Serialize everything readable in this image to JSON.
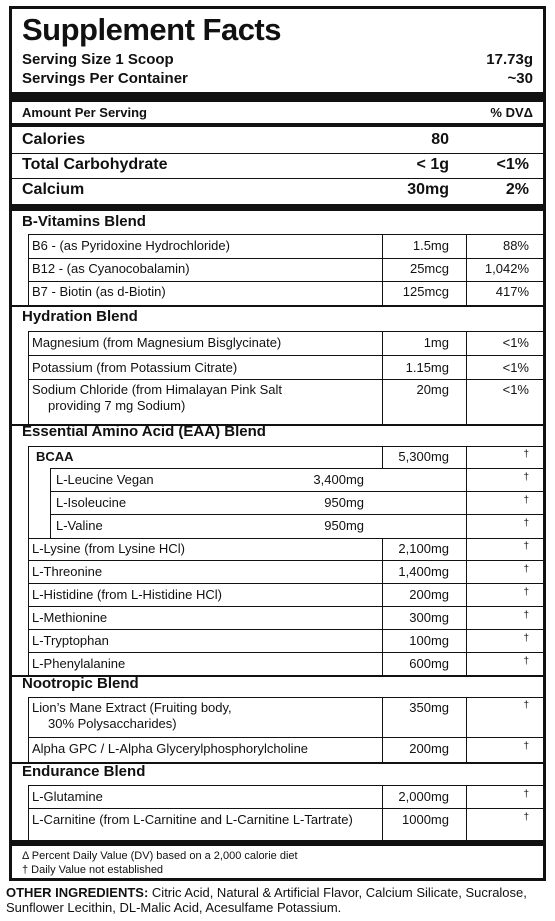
{
  "title": "Supplement Facts",
  "serving_size_label": "Serving Size 1 Scoop",
  "serving_size_value": "17.73g",
  "servings_label": "Servings Per Container",
  "servings_value": "~30",
  "amount_header": "Amount Per Serving",
  "dv_header": "% DVΔ",
  "calories": {
    "label": "Calories",
    "amount": "80"
  },
  "carbs": {
    "label": "Total Carbohydrate",
    "amount": "< 1g",
    "dv": "<1%"
  },
  "calcium": {
    "label": "Calcium",
    "amount": "30mg",
    "dv": "2%"
  },
  "bvit": {
    "title": "B-Vitamins Blend",
    "items": [
      {
        "label": "B6 - (as Pyridoxine Hydrochloride)",
        "amount": "1.5mg",
        "dv": "88%"
      },
      {
        "label": "B12 - (as Cyanocobalamin)",
        "amount": "25mcg",
        "dv": "1,042%"
      },
      {
        "label": "B7 - Biotin (as d-Biotin)",
        "amount": "125mcg",
        "dv": "417%"
      }
    ]
  },
  "hyd": {
    "title": "Hydration Blend",
    "items": [
      {
        "label": "Magnesium (from Magnesium Bisglycinate)",
        "amount": "1mg",
        "dv": "<1%"
      },
      {
        "label": "Potassium (from Potassium Citrate)",
        "amount": "1.15mg",
        "dv": "<1%"
      },
      {
        "label": "Sodium Chloride (from Himalayan Pink Salt",
        "label2": "providing 7 mg Sodium)",
        "amount": "20mg",
        "dv": "<1%"
      }
    ]
  },
  "eaa": {
    "title": "Essential Amino Acid (EAA) Blend",
    "bcaa": {
      "label": "BCAA",
      "amount": "5,300mg",
      "dv": "†"
    },
    "bcaa_items": [
      {
        "label": "L-Leucine Vegan",
        "amount": "3,400mg",
        "dv": "†"
      },
      {
        "label": "L-Isoleucine",
        "amount": "950mg",
        "dv": "†"
      },
      {
        "label": "L-Valine",
        "amount": "950mg",
        "dv": "†"
      }
    ],
    "items": [
      {
        "label": "L-Lysine (from Lysine HCl)",
        "amount": "2,100mg",
        "dv": "†"
      },
      {
        "label": "L-Threonine",
        "amount": "1,400mg",
        "dv": "†"
      },
      {
        "label": "L-Histidine (from L-Histidine HCl)",
        "amount": "200mg",
        "dv": "†"
      },
      {
        "label": "L-Methionine",
        "amount": "300mg",
        "dv": "†"
      },
      {
        "label": "L-Tryptophan",
        "amount": "100mg",
        "dv": "†"
      },
      {
        "label": "L-Phenylalanine",
        "amount": "600mg",
        "dv": "†"
      }
    ]
  },
  "noot": {
    "title": "Nootropic Blend",
    "items": [
      {
        "label": "Lion’s Mane Extract  (Fruiting body,",
        "label2": "30% Polysaccharides)",
        "amount": "350mg",
        "dv": "†"
      },
      {
        "label": "Alpha GPC / L-Alpha Glycerylphosphorylcholine",
        "amount": "200mg",
        "dv": "†"
      }
    ]
  },
  "endu": {
    "title": "Endurance Blend",
    "items": [
      {
        "label": "L-Glutamine",
        "amount": "2,000mg",
        "dv": "†"
      },
      {
        "label": "L-Carnitine (from L-Carnitine and L-Carnitine L-Tartrate)",
        "amount": "1000mg",
        "dv": "†"
      }
    ]
  },
  "footnote1": "Δ Percent Daily Value (DV) based on a 2,000 calorie diet",
  "footnote2": "† Daily Value not established",
  "other_label": "OTHER INGREDIENTS:",
  "other_text": "Citric Acid, Natural & Artificial Flavor, Calcium Silicate, Sucralose, Sunflower Lecithin, DL-Malic Acid, Acesulfame Potassium."
}
